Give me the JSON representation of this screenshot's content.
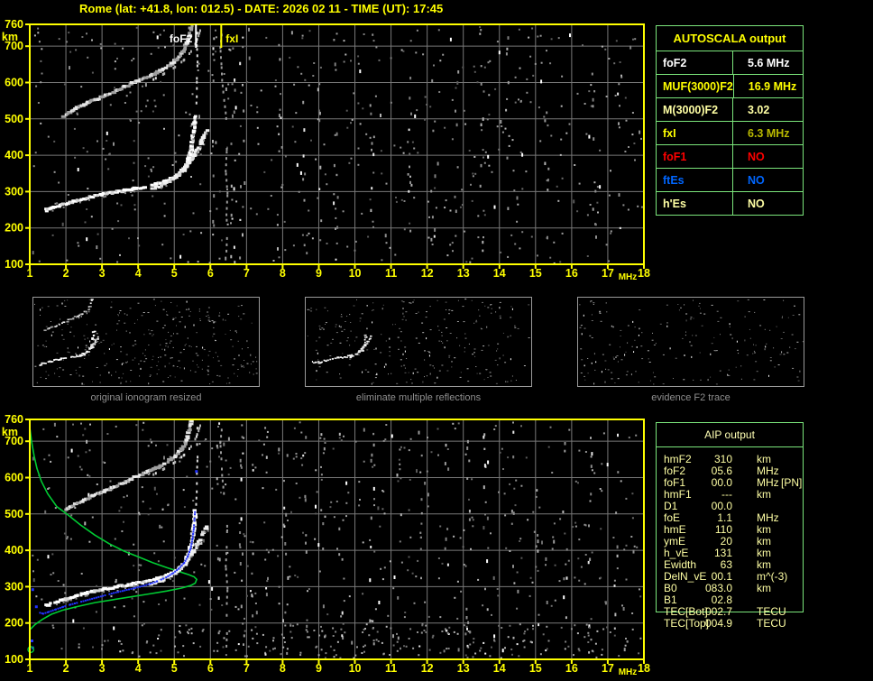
{
  "title": "Rome (lat: +41.8, lon: 012.5) - DATE: 2026 02 11 - TIME (UT): 17:45",
  "colors": {
    "background": "#000000",
    "axis_yellow": "#ffff00",
    "grid_gray": "#787878",
    "table_border_green": "#7be67b",
    "pale_yellow": "#ffffa4",
    "red": "#ff0000",
    "blue": "#0066ff",
    "olive": "#b9b900",
    "trace_white": "#ffffff",
    "profile_green": "#00cc33",
    "scaled_trace_blue": "#2233ff",
    "caption_gray": "#8f8f8f"
  },
  "autoscala": {
    "header_label": "AUTOSCALA output",
    "rows": [
      {
        "label": "foF2",
        "value": "5.6 MHz",
        "label_color": "#ffffff",
        "value_color": "#ffffff"
      },
      {
        "label": "MUF(3000)F2",
        "value": "16.9 MHz",
        "label_color": "#ffff00",
        "value_color": "#ffff00"
      },
      {
        "label": "M(3000)F2",
        "value": "3.02",
        "label_color": "#ffffa4",
        "value_color": "#ffffa4"
      },
      {
        "label": "fxI",
        "value": "6.3 MHz",
        "label_color": "#ffff00",
        "value_color": "#b9b900"
      },
      {
        "label": "foF1",
        "value": "NO",
        "label_color": "#ff0000",
        "value_color": "#ff0000"
      },
      {
        "label": "ftEs",
        "value": "NO",
        "label_color": "#0066ff",
        "value_color": "#0066ff"
      },
      {
        "label": "h'Es",
        "value": "NO",
        "label_color": "#ffffa4",
        "value_color": "#ffffa4"
      }
    ]
  },
  "aip": {
    "header_label": "AIP output",
    "rows": [
      {
        "label": "hmF2",
        "value": "310",
        "unit": "km",
        "extra": ""
      },
      {
        "label": "foF2",
        "value": "05.6",
        "unit": "MHz",
        "extra": ""
      },
      {
        "label": "foF1",
        "value": "00.0",
        "unit": "MHz",
        "extra": "[PN]"
      },
      {
        "label": "hmF1",
        "value": "---",
        "unit": "km",
        "extra": ""
      },
      {
        "label": "D1",
        "value": "00.0",
        "unit": "",
        "extra": ""
      },
      {
        "label": "foE",
        "value": "1.1",
        "unit": "MHz",
        "extra": ""
      },
      {
        "label": "hmE",
        "value": "110",
        "unit": "km",
        "extra": ""
      },
      {
        "label": "ymE",
        "value": "20",
        "unit": "km",
        "extra": ""
      },
      {
        "label": "h_vE",
        "value": "131",
        "unit": "km",
        "extra": ""
      },
      {
        "label": "Ewidth",
        "value": "63",
        "unit": "km",
        "extra": ""
      },
      {
        "label": "DelN_vE",
        "value": "00.1",
        "unit": "m^(-3)",
        "extra": ""
      },
      {
        "label": "B0",
        "value": "083.0",
        "unit": "km",
        "extra": ""
      },
      {
        "label": "B1",
        "value": "02.8",
        "unit": "",
        "extra": ""
      },
      {
        "label": "TEC[Bot]",
        "value": "002.7",
        "unit": "TECU",
        "extra": ""
      },
      {
        "label": "TEC[Top]",
        "value": "004.9",
        "unit": "TECU",
        "extra": ""
      }
    ]
  },
  "chart_data": {
    "type": "scatter",
    "x_axis": {
      "label": "MHz",
      "min": 1,
      "max": 18,
      "ticks": [
        1,
        2,
        3,
        4,
        5,
        6,
        7,
        8,
        9,
        10,
        11,
        12,
        13,
        14,
        15,
        16,
        17,
        18
      ]
    },
    "y_axis": {
      "label": "km",
      "min": 100,
      "max": 760,
      "ticks": [
        760,
        700,
        600,
        500,
        400,
        300,
        200,
        100
      ]
    },
    "grid": true,
    "traces": {
      "f2_main": {
        "style": "thick",
        "color": "#ffffff",
        "pts": [
          [
            1.45,
            248
          ],
          [
            1.7,
            257
          ],
          [
            2.0,
            266
          ],
          [
            2.3,
            275
          ],
          [
            2.6,
            283
          ],
          [
            3.0,
            292
          ],
          [
            3.4,
            299
          ],
          [
            3.8,
            306
          ],
          [
            4.2,
            313
          ],
          [
            4.5,
            320
          ],
          [
            4.8,
            330
          ],
          [
            5.0,
            340
          ],
          [
            5.15,
            352
          ],
          [
            5.3,
            368
          ],
          [
            5.4,
            388
          ],
          [
            5.47,
            412
          ],
          [
            5.52,
            442
          ],
          [
            5.55,
            478
          ],
          [
            5.57,
            512
          ]
        ]
      },
      "f2_x": {
        "style": "thick",
        "color": "#f0f0f0",
        "pts": [
          [
            4.35,
            306
          ],
          [
            4.6,
            315
          ],
          [
            4.85,
            326
          ],
          [
            5.05,
            340
          ],
          [
            5.25,
            357
          ],
          [
            5.4,
            377
          ],
          [
            5.55,
            400
          ],
          [
            5.7,
            425
          ],
          [
            5.82,
            448
          ],
          [
            5.92,
            470
          ]
        ]
      },
      "hop2": {
        "style": "mixed",
        "color": "#e8e8e8",
        "pts": [
          [
            1.95,
            508
          ],
          [
            2.2,
            524
          ],
          [
            2.6,
            543
          ],
          [
            3.0,
            560
          ],
          [
            3.4,
            577
          ],
          [
            3.8,
            596
          ],
          [
            4.1,
            610
          ],
          [
            4.4,
            621
          ],
          [
            4.65,
            634
          ],
          [
            4.9,
            650
          ],
          [
            5.1,
            666
          ],
          [
            5.25,
            684
          ],
          [
            5.35,
            706
          ],
          [
            5.43,
            733
          ],
          [
            5.48,
            760
          ]
        ]
      },
      "hop2_x": {
        "style": "dash",
        "color": "#b0b0b0",
        "pts": [
          [
            4.4,
            612
          ],
          [
            4.7,
            628
          ],
          [
            5.0,
            646
          ],
          [
            5.25,
            666
          ],
          [
            5.45,
            690
          ],
          [
            5.6,
            718
          ],
          [
            5.7,
            748
          ],
          [
            5.73,
            760
          ]
        ]
      },
      "asym_o": {
        "style": "dots",
        "color": "#d8d8d8",
        "pts": [
          [
            5.58,
            530
          ],
          [
            5.6,
            570
          ],
          [
            5.6,
            615
          ],
          [
            5.62,
            660
          ],
          [
            5.6,
            705
          ],
          [
            5.62,
            750
          ]
        ]
      },
      "asym_x": {
        "style": "dots",
        "color": "#9a9a9a",
        "pts": [
          [
            6.42,
            140
          ],
          [
            6.44,
            190
          ],
          [
            6.42,
            240
          ],
          [
            6.45,
            300
          ],
          [
            6.4,
            360
          ],
          [
            6.43,
            420
          ],
          [
            6.44,
            470
          ],
          [
            6.4,
            520
          ],
          [
            6.35,
            560
          ],
          [
            6.3,
            610
          ],
          [
            6.28,
            655
          ],
          [
            6.25,
            700
          ],
          [
            6.3,
            745
          ]
        ]
      },
      "residual": {
        "style": "dots",
        "color": "#cccccc",
        "pts": [
          [
            3.5,
            548
          ],
          [
            3.62,
            543
          ],
          [
            3.74,
            538
          ]
        ]
      }
    },
    "plots": [
      {
        "id": "top",
        "markers": [
          {
            "label": "foF2",
            "mhz": 5.6,
            "color": "#ffffff"
          },
          {
            "label": "fxI",
            "mhz": 6.3,
            "color": "#ffff00"
          }
        ],
        "traces": [
          "f2_main",
          "f2_x",
          "hop2",
          "hop2_x",
          "asym_o",
          "asym_x"
        ],
        "noise": {
          "seed": 7,
          "count": 520,
          "streaks": [
            [
              6.07,
              12
            ],
            [
              6.6,
              14
            ],
            [
              6.85,
              12
            ],
            [
              7.9,
              10
            ],
            [
              8.6,
              8
            ],
            [
              9.0,
              9
            ],
            [
              9.45,
              12
            ],
            [
              10.45,
              10
            ],
            [
              11.5,
              12
            ],
            [
              12.15,
              8
            ],
            [
              12.8,
              7
            ],
            [
              13.5,
              12
            ],
            [
              14.2,
              8
            ],
            [
              15.3,
              9
            ],
            [
              16.6,
              10
            ],
            [
              17.3,
              7
            ]
          ]
        }
      },
      {
        "id": "bottom",
        "markers": [],
        "traces": [
          "f2_main",
          "f2_x",
          "hop2",
          "hop2_x",
          "asym_o",
          "asym_x"
        ],
        "noise": {
          "seed": 13,
          "count": 560,
          "streaks": [
            [
              6.2,
              10
            ],
            [
              6.85,
              16
            ],
            [
              7.1,
              9
            ],
            [
              7.55,
              8
            ],
            [
              8.05,
              12
            ],
            [
              8.6,
              8
            ],
            [
              9.1,
              10
            ],
            [
              9.6,
              8
            ],
            [
              10.45,
              12
            ],
            [
              11.2,
              8
            ],
            [
              11.85,
              10
            ],
            [
              12.5,
              8
            ],
            [
              13.1,
              14
            ],
            [
              13.6,
              9
            ],
            [
              14.35,
              8
            ],
            [
              15.0,
              7
            ],
            [
              15.8,
              8
            ],
            [
              16.5,
              9
            ],
            [
              17.2,
              8
            ]
          ],
          "bottom_band": {
            "count": 170,
            "y_km_max": 200
          }
        },
        "profile": {
          "color": "#00cc33",
          "pts": [
            [
              1.0,
              738
            ],
            [
              1.05,
              700
            ],
            [
              1.12,
              660
            ],
            [
              1.2,
              625
            ],
            [
              1.32,
              590
            ],
            [
              1.5,
              555
            ],
            [
              1.75,
              520
            ],
            [
              2.05,
              498
            ],
            [
              2.4,
              470
            ],
            [
              2.8,
              442
            ],
            [
              3.2,
              418
            ],
            [
              3.6,
              398
            ],
            [
              4.0,
              382
            ],
            [
              4.4,
              366
            ],
            [
              4.8,
              352
            ],
            [
              5.15,
              341
            ],
            [
              5.4,
              333
            ],
            [
              5.55,
              327
            ],
            [
              5.62,
              320
            ],
            [
              5.58,
              310
            ],
            [
              5.45,
              303
            ],
            [
              5.2,
              296
            ],
            [
              4.8,
              288
            ],
            [
              4.3,
              280
            ],
            [
              3.8,
              272
            ],
            [
              3.3,
              264
            ],
            [
              2.8,
              256
            ],
            [
              2.3,
              245
            ],
            [
              1.9,
              235
            ],
            [
              1.6,
              224
            ],
            [
              1.35,
              210
            ],
            [
              1.15,
              196
            ],
            [
              1.02,
              183
            ]
          ]
        },
        "scaled_trace": {
          "style": "dots2",
          "color": "#2233ff",
          "pts": [
            [
              1.2,
              232
            ],
            [
              1.35,
              228
            ],
            [
              1.5,
              233
            ],
            [
              1.7,
              240
            ],
            [
              1.9,
              247
            ],
            [
              2.1,
              253
            ],
            [
              2.4,
              261
            ],
            [
              2.7,
              269
            ],
            [
              3.0,
              277
            ],
            [
              3.3,
              285
            ],
            [
              3.6,
              292
            ],
            [
              3.9,
              299
            ],
            [
              4.2,
              307
            ],
            [
              4.5,
              317
            ],
            [
              4.75,
              328
            ],
            [
              4.95,
              340
            ],
            [
              5.1,
              352
            ],
            [
              5.25,
              368
            ],
            [
              5.35,
              386
            ],
            [
              5.43,
              408
            ],
            [
              5.48,
              435
            ],
            [
              5.52,
              465
            ],
            [
              5.54,
              495
            ],
            [
              5.55,
              510
            ]
          ]
        },
        "scaled_points": [
          [
            1.07,
            293
          ],
          [
            1.17,
            246
          ],
          [
            5.6,
            618
          ],
          [
            1.05,
            152
          ],
          [
            1.07,
            133
          ]
        ],
        "circle_marker": {
          "pt": [
            1.03,
            127
          ],
          "color": "#00cc33"
        }
      }
    ],
    "thumbnails": [
      {
        "caption": "original ionogram resized",
        "traces": [
          "f2_main",
          "f2_x",
          "hop2",
          "hop2_x"
        ],
        "noise": 320,
        "density": 0.6,
        "seed": 21
      },
      {
        "caption": "eliminate multiple reflections",
        "traces": [
          "f2_main",
          "f2_x",
          "asym_o",
          "residual"
        ],
        "noise": 260,
        "density": 0.5,
        "seed": 22
      },
      {
        "caption": "evidence F2 trace",
        "traces": [
          "f2_main",
          "asym_o",
          "residual"
        ],
        "noise": 200,
        "density": 0.32,
        "seed": 23
      }
    ]
  }
}
